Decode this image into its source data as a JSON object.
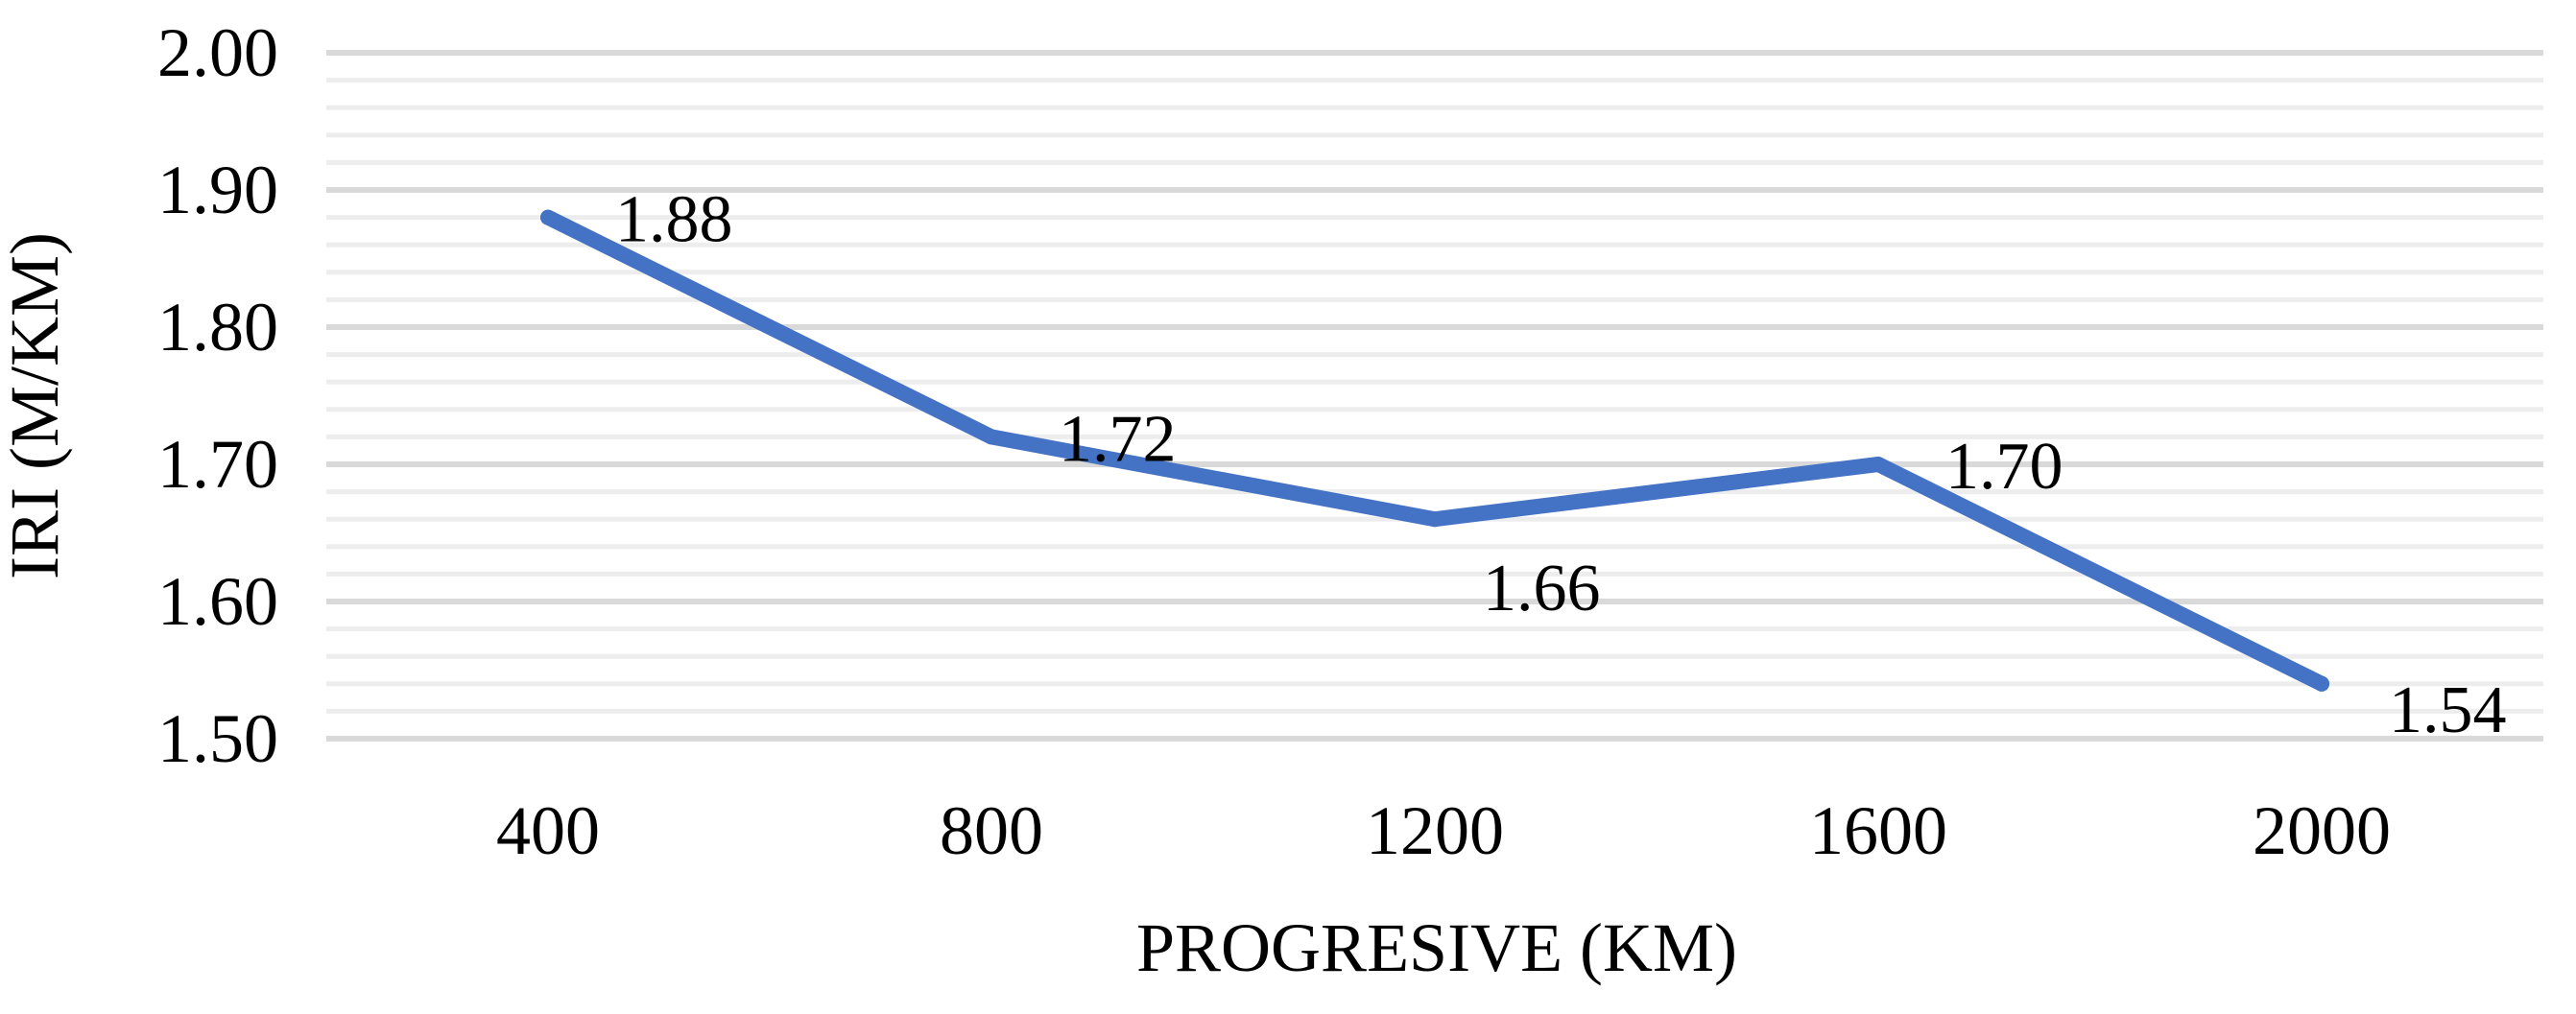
{
  "chart_data": {
    "type": "line",
    "title": "",
    "xlabel": "PROGRESIVE (KM)",
    "ylabel": "IRI (M/KM)",
    "x": [
      "400",
      "800",
      "1200",
      "1600",
      "2000"
    ],
    "series": [
      {
        "values": [
          1.88,
          1.72,
          1.66,
          1.7,
          1.54
        ],
        "labels": [
          "1.88",
          "1.72",
          "1.66",
          "1.70",
          "1.54"
        ],
        "color": "#4472C4"
      }
    ],
    "ylim": [
      1.5,
      2.0
    ],
    "y_ticks": [
      "1.50",
      "1.60",
      "1.70",
      "1.80",
      "1.90",
      "2.00"
    ],
    "grid": {
      "major": true,
      "minor": true,
      "major_color": "#D9D9D9",
      "minor_color": "#EDEDED"
    },
    "legend": "none"
  }
}
